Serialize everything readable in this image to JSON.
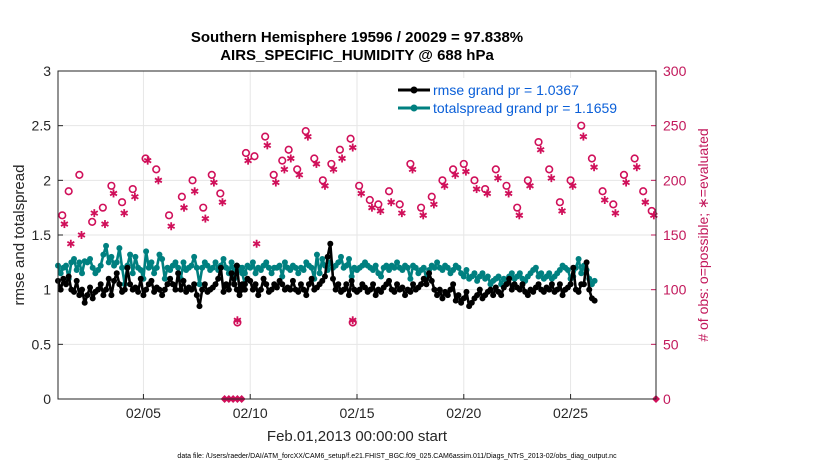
{
  "chart_data": {
    "type": "line",
    "title_line1": "Southern Hemisphere 19596 / 20029 = 97.838%",
    "title_line2": "AIRS_SPECIFIC_HUMIDITY @ 688 hPa",
    "xlabel": "Feb.01,2013 00:00:00 start",
    "ylabel_left": "rmse and totalspread",
    "ylabel_right": "# of obs: o=possible; ∗=evaluated",
    "footnote": "data file: /Users/raeder/DAI/ATM_forcXX/CAM6_setup/f.e21.FHIST_BGC.f09_025.CAM6assim.011/Diags_NTrS_2013-02/obs_diag_output.nc",
    "xlim": [
      1,
      29
    ],
    "ylim_left": [
      0,
      3
    ],
    "ylim_right": [
      0,
      300
    ],
    "x_ticks": [
      5,
      10,
      15,
      20,
      25
    ],
    "x_tick_labels": [
      "02/05",
      "02/10",
      "02/15",
      "02/20",
      "02/25"
    ],
    "y_ticks_left": [
      "0",
      "0.5",
      "1",
      "1.5",
      "2",
      "2.5",
      "3"
    ],
    "y_ticks_right": [
      "0",
      "50",
      "100",
      "150",
      "200",
      "250",
      "300"
    ],
    "legend": [
      "rmse grand pr = 1.0367",
      "totalspread grand pr = 1.1659"
    ],
    "colors": {
      "rmse": "#000000",
      "spread": "#008080",
      "obs": "#d0105a",
      "right_axis": "#c2185b",
      "legend_text": "#0a5fd8"
    },
    "gap_x": [
      8.75,
      9.125
    ],
    "series": [
      {
        "name": "rmse",
        "x_start": 1,
        "dx": 0.125,
        "values": [
          1.08,
          1.0,
          1.1,
          1.05,
          1.12,
          1.0,
          0.98,
          1.08,
          0.95,
          1.0,
          0.88,
          0.95,
          1.02,
          0.92,
          0.98,
          1.0,
          1.05,
          0.95,
          1.0,
          1.1,
          0.95,
          1.08,
          1.15,
          1.05,
          0.98,
          1.0,
          1.2,
          1.05,
          1.0,
          1.02,
          0.98,
          1.1,
          0.95,
          1.0,
          1.05,
          1.08,
          0.98,
          1.02,
          1.0,
          0.95,
          1.0,
          1.05,
          1.1,
          1.05,
          1.0,
          1.15,
          1.0,
          1.08,
          0.98,
          1.02,
          1.0,
          1.05,
          0.95,
          0.85,
          1.0,
          1.05,
          0.98,
          1.0,
          1.02,
          1.05,
          1.1,
          1.2,
          0.98,
          1.05,
          1.0,
          1.15,
          1.05,
          1.22,
          1.0,
          1.05,
          1.0
        ],
        "values_after_gap": [
          1.05,
          1.0,
          0.95,
          1.0,
          1.05,
          1.1,
          1.08,
          1.0,
          1.05,
          0.95,
          1.0,
          1.1,
          1.05,
          0.98,
          1.0,
          1.05,
          1.02,
          1.08,
          1.05,
          1.0,
          1.02,
          1.0,
          1.08,
          1.0,
          0.98,
          1.05,
          1.0,
          0.95,
          1.05,
          1.1,
          1.0,
          1.02,
          1.05,
          1.08,
          1.12,
          1.3,
          1.42,
          1.1,
          1.0,
          1.05,
          0.98,
          1.0,
          1.05,
          0.95,
          1.08,
          1.0,
          0.98,
          1.0,
          1.05,
          1.02,
          0.98,
          1.0,
          1.05,
          0.95,
          1.0,
          0.98,
          1.02,
          1.05,
          1.08,
          1.0,
          0.98,
          1.05,
          1.0,
          1.02,
          0.95,
          1.0,
          0.98,
          1.05,
          1.0,
          1.02,
          1.05,
          1.1,
          1.05,
          1.15,
          1.08,
          1.0,
          0.95,
          1.0,
          0.92,
          0.98,
          0.95,
          1.0,
          1.05,
          0.9,
          0.95,
          0.88,
          0.92,
          0.98,
          0.85,
          0.88,
          0.92,
          0.95,
          1.0,
          0.92,
          0.95,
          0.98,
          1.0,
          0.95,
          1.02,
          0.98,
          0.95,
          1.02,
          1.05,
          1.1,
          1.0,
          1.05,
          1.02,
          1.0,
          1.05,
          0.98,
          0.95,
          1.0,
          0.98,
          1.02,
          1.05,
          1.0,
          0.98,
          1.02,
          1.0,
          1.05,
          0.98,
          1.0,
          1.05,
          0.95,
          1.0,
          1.02,
          1.05,
          1.2,
          1.0,
          0.98,
          1.05,
          1.05,
          1.25,
          1.0,
          0.92,
          0.9
        ]
      },
      {
        "name": "totalspread",
        "x_start": 1,
        "dx": 0.125,
        "values": [
          1.22,
          1.15,
          1.2,
          1.22,
          1.1,
          1.25,
          1.28,
          1.18,
          1.25,
          1.15,
          1.26,
          1.25,
          1.28,
          1.2,
          1.15,
          1.18,
          1.22,
          1.32,
          1.4,
          1.25,
          1.3,
          1.22,
          1.25,
          1.38,
          1.2,
          1.05,
          1.22,
          1.32,
          1.15,
          1.3,
          1.2,
          1.18,
          1.1,
          1.35,
          1.2,
          1.25,
          1.15,
          1.2,
          1.32,
          1.28,
          1.1,
          1.2,
          1.18,
          1.22,
          1.25,
          1.2,
          1.1,
          1.25,
          1.18,
          1.2,
          1.22,
          1.3,
          1.2,
          1.05,
          1.2,
          1.25,
          1.22,
          1.18,
          1.2,
          1.25,
          1.18,
          1.22,
          1.28,
          1.2,
          1.15,
          1.25,
          1.1,
          1.22,
          1.2,
          1.15,
          1.05
        ],
        "values_after_gap": [
          1.2,
          1.2,
          1.18,
          1.2,
          1.15,
          1.22,
          1.2,
          1.25,
          1.15,
          1.2,
          1.18,
          1.22,
          1.25,
          1.2,
          1.15,
          1.2,
          1.2,
          1.22,
          1.12,
          1.25,
          1.2,
          1.18,
          1.22,
          1.2,
          1.15,
          1.2,
          1.18,
          1.25,
          1.22,
          1.2,
          1.1,
          1.32,
          1.15,
          1.28,
          1.22,
          1.18,
          1.25,
          1.2,
          1.22,
          1.25,
          1.3,
          1.2,
          1.22,
          1.28,
          1.12,
          1.2,
          1.18,
          1.2,
          1.22,
          1.25,
          1.22,
          1.2,
          1.18,
          1.22,
          1.15,
          1.12,
          1.2,
          1.22,
          1.18,
          1.22,
          1.2,
          1.25,
          1.2,
          1.18,
          1.22,
          1.2,
          1.1,
          1.22,
          1.2,
          1.15,
          1.18,
          1.2,
          1.1,
          1.18,
          1.22,
          1.2,
          1.25,
          1.2,
          1.18,
          1.22,
          1.2,
          1.15,
          1.18,
          1.22,
          1.2,
          1.15,
          1.12,
          1.18,
          1.1,
          1.12,
          1.15,
          1.08,
          1.12,
          1.15,
          1.1,
          1.12,
          1.05,
          1.08,
          1.1,
          1.12,
          1.05,
          1.1,
          1.08,
          1.12,
          1.15,
          1.1,
          1.12,
          1.15,
          1.1,
          1.08,
          1.12,
          1.15,
          1.18,
          1.2,
          1.12,
          1.15,
          1.1,
          1.12,
          1.15,
          1.1,
          1.12,
          1.15,
          1.18,
          1.22,
          1.2,
          1.18,
          1.1,
          1.12,
          1.2,
          1.28,
          1.15,
          1.22,
          1.18,
          1.1,
          1.05,
          1.08
        ]
      },
      {
        "name": "obs_possible",
        "axis": "right",
        "x": [
          1.2,
          1.5,
          2.0,
          2.6,
          3.1,
          3.5,
          4.0,
          4.5,
          5.1,
          5.6,
          6.2,
          6.8,
          7.3,
          7.8,
          8.2,
          8.6,
          9.8,
          10.2,
          10.7,
          11.1,
          11.5,
          11.8,
          12.2,
          12.6,
          13.0,
          13.4,
          13.8,
          14.2,
          14.7,
          15.1,
          15.6,
          16.0,
          16.5,
          17.0,
          17.5,
          18.0,
          18.5,
          19.0,
          19.5,
          20.0,
          20.5,
          21.0,
          21.5,
          22.0,
          22.5,
          23.0,
          23.5,
          24.0,
          24.5,
          25.0,
          25.5,
          26.0,
          26.5,
          27.0,
          27.5,
          28.0,
          28.4,
          28.8
        ],
        "values": [
          168,
          190,
          205,
          162,
          175,
          195,
          180,
          192,
          220,
          210,
          168,
          185,
          200,
          175,
          205,
          188,
          225,
          222,
          240,
          205,
          218,
          228,
          210,
          245,
          220,
          200,
          215,
          228,
          238,
          195,
          182,
          178,
          190,
          178,
          215,
          175,
          185,
          200,
          210,
          215,
          200,
          192,
          210,
          195,
          175,
          200,
          235,
          210,
          180,
          200,
          250,
          220,
          190,
          178,
          205,
          220,
          190,
          172
        ],
        "values_low": [
          70
        ]
      },
      {
        "name": "obs_evaluated",
        "axis": "right",
        "x": [
          1.3,
          1.6,
          2.1,
          2.7,
          3.2,
          3.6,
          4.1,
          4.6,
          5.2,
          5.7,
          6.3,
          6.9,
          7.4,
          7.9,
          8.3,
          8.7,
          9.9,
          10.3,
          10.8,
          11.2,
          11.6,
          11.9,
          12.3,
          12.7,
          13.1,
          13.5,
          13.9,
          14.3,
          14.8,
          15.2,
          15.7,
          16.1,
          16.6,
          17.1,
          17.6,
          18.1,
          18.6,
          19.1,
          19.6,
          20.1,
          20.6,
          21.1,
          21.6,
          22.1,
          22.6,
          23.1,
          23.6,
          24.1,
          24.6,
          25.1,
          25.6,
          26.1,
          26.6,
          27.1,
          27.6,
          28.1,
          28.5,
          28.9
        ],
        "values": [
          160,
          142,
          150,
          170,
          160,
          188,
          170,
          185,
          218,
          200,
          158,
          175,
          190,
          165,
          198,
          180,
          218,
          142,
          232,
          198,
          210,
          220,
          205,
          240,
          215,
          195,
          210,
          220,
          230,
          188,
          175,
          172,
          180,
          170,
          210,
          168,
          178,
          195,
          205,
          208,
          192,
          188,
          202,
          188,
          168,
          195,
          228,
          202,
          172,
          195,
          240,
          212,
          182,
          170,
          198,
          212,
          180,
          168
        ],
        "values_low": [
          72
        ]
      },
      {
        "name": "obs_zero_markers",
        "axis": "right",
        "x": [
          8.8,
          9.0,
          9.2,
          9.4,
          9.6,
          29.0
        ],
        "values": [
          0,
          0,
          0,
          0,
          0,
          0
        ]
      }
    ]
  }
}
